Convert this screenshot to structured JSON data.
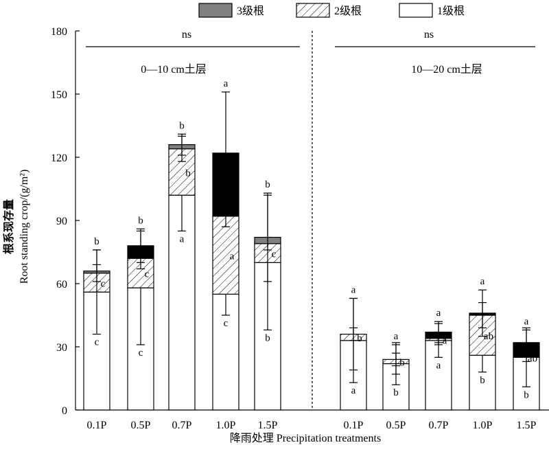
{
  "chart_data": {
    "type": "bar",
    "stacked": true,
    "xlabel": "降雨处理 Precipitation treatments",
    "ylabel_cn": "根系现存量",
    "ylabel_en": "Root standing crop/(g/m²)",
    "ylim": [
      0,
      180
    ],
    "yticks": [
      0,
      30,
      60,
      90,
      120,
      150,
      180
    ],
    "legend": {
      "placement": "top",
      "entries": [
        {
          "key": "level3",
          "label": "3级根",
          "fill": "#7f7f7f"
        },
        {
          "key": "level2",
          "label": "2级根",
          "fill": "hatch"
        },
        {
          "key": "level1",
          "label": "1级根",
          "fill": "#ffffff"
        }
      ]
    },
    "panels": [
      {
        "title": "0—10 cm土层",
        "sig_label": "ns",
        "categories": [
          "0.1P",
          "0.5P",
          "0.7P",
          "1.0P",
          "1.5P"
        ],
        "series": [
          {
            "key": "level1",
            "values": [
              56,
              58,
              102,
              55,
              70
            ],
            "err": [
              20,
              27,
              17,
              10,
              32
            ],
            "labels": [
              "c",
              "c",
              "a",
              "c",
              "b"
            ]
          },
          {
            "key": "level2",
            "values": [
              9,
              14,
              22,
              37,
              9
            ],
            "err": [
              4,
              5,
              6,
              5,
              3
            ],
            "labels": [
              "c",
              "c",
              "b",
              "a",
              "c"
            ]
          },
          {
            "key": "level3",
            "values": [
              1,
              6,
              2,
              30,
              3
            ],
            "err": [
              10,
              8,
              5,
              29,
              21
            ],
            "labels": [
              "b",
              "b",
              "b",
              "a",
              "b"
            ],
            "fill": [
              "#7f7f7f",
              "#000000",
              "#7f7f7f",
              "#000000",
              "#7f7f7f"
            ]
          }
        ]
      },
      {
        "title": "10—20 cm土层",
        "sig_label": "ns",
        "categories": [
          "0.1P",
          "0.5P",
          "0.7P",
          "1.0P",
          "1.5P"
        ],
        "series": [
          {
            "key": "level1",
            "values": [
              33,
              22,
              33,
              26,
              25
            ],
            "err": [
              20,
              10,
              8,
              8,
              14
            ],
            "labels": [
              "a",
              "b",
              "a",
              "b",
              "b"
            ]
          },
          {
            "key": "level2",
            "values": [
              3,
              2,
              1,
              19,
              0
            ],
            "err": [
              3,
              3,
              3,
              6,
              2
            ],
            "labels": [
              "b",
              "b",
              "a",
              "ab",
              "ab"
            ]
          },
          {
            "key": "level3",
            "values": [
              0,
              0,
              3,
              1,
              7
            ],
            "err": [
              17,
              7,
              5,
              11,
              6
            ],
            "labels": [
              "a",
              "a",
              "a",
              "a",
              "a"
            ],
            "fill": [
              "#7f7f7f",
              "#7f7f7f",
              "#000000",
              "#000000",
              "#000000"
            ]
          }
        ]
      }
    ]
  }
}
